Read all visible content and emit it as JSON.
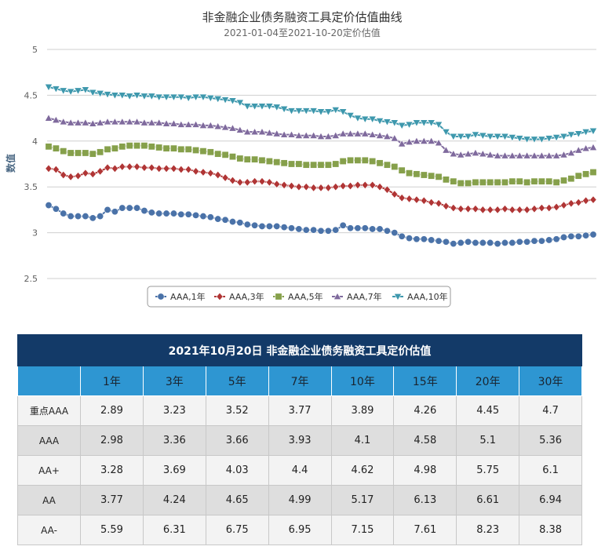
{
  "chart_data": {
    "type": "line",
    "title": "非金融企业债务融资工具定价估值曲线",
    "subtitle": "2021-01-04至2021-10-20定价估值",
    "ylabel": "数值",
    "xlabel": "",
    "ylim": [
      2.5,
      5
    ],
    "yticks": [
      2.5,
      3,
      3.5,
      4,
      4.5,
      5
    ],
    "grid": true,
    "legend_position": "bottom",
    "x_range": [
      "2021-01-04",
      "2021-10-20"
    ],
    "series": [
      {
        "name": "AAA,1年",
        "color": "#4a72a8",
        "marker": "circle",
        "values": [
          3.3,
          3.26,
          3.21,
          3.18,
          3.18,
          3.18,
          3.16,
          3.18,
          3.25,
          3.23,
          3.27,
          3.27,
          3.27,
          3.24,
          3.22,
          3.21,
          3.21,
          3.21,
          3.2,
          3.2,
          3.19,
          3.18,
          3.17,
          3.15,
          3.14,
          3.12,
          3.11,
          3.09,
          3.08,
          3.07,
          3.07,
          3.07,
          3.06,
          3.05,
          3.04,
          3.03,
          3.03,
          3.02,
          3.02,
          3.03,
          3.08,
          3.05,
          3.05,
          3.05,
          3.04,
          3.04,
          3.02,
          3.0,
          2.96,
          2.94,
          2.93,
          2.93,
          2.92,
          2.91,
          2.9,
          2.88,
          2.89,
          2.9,
          2.89,
          2.89,
          2.89,
          2.88,
          2.89,
          2.89,
          2.9,
          2.9,
          2.91,
          2.91,
          2.92,
          2.93,
          2.95,
          2.96,
          2.96,
          2.97,
          2.98
        ]
      },
      {
        "name": "AAA,3年",
        "color": "#b03535",
        "marker": "diamond",
        "values": [
          3.7,
          3.69,
          3.63,
          3.61,
          3.62,
          3.65,
          3.64,
          3.67,
          3.71,
          3.7,
          3.72,
          3.72,
          3.72,
          3.71,
          3.71,
          3.7,
          3.7,
          3.7,
          3.69,
          3.69,
          3.67,
          3.66,
          3.65,
          3.63,
          3.6,
          3.57,
          3.55,
          3.55,
          3.56,
          3.56,
          3.55,
          3.53,
          3.52,
          3.51,
          3.5,
          3.5,
          3.49,
          3.49,
          3.49,
          3.5,
          3.51,
          3.51,
          3.52,
          3.52,
          3.52,
          3.5,
          3.47,
          3.42,
          3.38,
          3.37,
          3.36,
          3.35,
          3.33,
          3.32,
          3.29,
          3.27,
          3.26,
          3.26,
          3.26,
          3.25,
          3.25,
          3.25,
          3.26,
          3.25,
          3.25,
          3.25,
          3.26,
          3.27,
          3.27,
          3.28,
          3.3,
          3.32,
          3.33,
          3.35,
          3.36
        ]
      },
      {
        "name": "AAA,5年",
        "color": "#86a04b",
        "marker": "square",
        "values": [
          3.94,
          3.92,
          3.89,
          3.87,
          3.87,
          3.87,
          3.86,
          3.88,
          3.91,
          3.92,
          3.94,
          3.95,
          3.95,
          3.95,
          3.94,
          3.93,
          3.92,
          3.92,
          3.91,
          3.91,
          3.9,
          3.89,
          3.88,
          3.86,
          3.85,
          3.83,
          3.81,
          3.8,
          3.8,
          3.79,
          3.78,
          3.77,
          3.76,
          3.75,
          3.75,
          3.74,
          3.74,
          3.74,
          3.74,
          3.75,
          3.78,
          3.79,
          3.79,
          3.79,
          3.78,
          3.76,
          3.74,
          3.72,
          3.68,
          3.65,
          3.64,
          3.63,
          3.62,
          3.61,
          3.58,
          3.56,
          3.54,
          3.54,
          3.55,
          3.55,
          3.55,
          3.55,
          3.55,
          3.56,
          3.56,
          3.55,
          3.56,
          3.56,
          3.56,
          3.55,
          3.57,
          3.59,
          3.62,
          3.64,
          3.66
        ]
      },
      {
        "name": "AAA,7年",
        "color": "#7f6a9d",
        "marker": "triangle-up",
        "values": [
          4.25,
          4.23,
          4.21,
          4.2,
          4.2,
          4.2,
          4.19,
          4.2,
          4.21,
          4.21,
          4.21,
          4.21,
          4.21,
          4.2,
          4.2,
          4.2,
          4.19,
          4.19,
          4.18,
          4.18,
          4.18,
          4.17,
          4.17,
          4.16,
          4.15,
          4.14,
          4.12,
          4.1,
          4.1,
          4.1,
          4.09,
          4.08,
          4.07,
          4.07,
          4.06,
          4.06,
          4.06,
          4.05,
          4.05,
          4.06,
          4.08,
          4.08,
          4.08,
          4.08,
          4.07,
          4.06,
          4.05,
          4.03,
          3.97,
          3.99,
          4.0,
          4.0,
          4.0,
          3.98,
          3.9,
          3.86,
          3.85,
          3.86,
          3.87,
          3.86,
          3.85,
          3.84,
          3.84,
          3.84,
          3.84,
          3.84,
          3.84,
          3.84,
          3.84,
          3.84,
          3.85,
          3.87,
          3.9,
          3.92,
          3.93
        ]
      },
      {
        "name": "AAA,10年",
        "color": "#3e98ad",
        "marker": "triangle-down",
        "values": [
          4.59,
          4.57,
          4.55,
          4.54,
          4.55,
          4.56,
          4.53,
          4.52,
          4.51,
          4.5,
          4.5,
          4.49,
          4.5,
          4.49,
          4.49,
          4.48,
          4.48,
          4.48,
          4.48,
          4.47,
          4.48,
          4.48,
          4.47,
          4.46,
          4.45,
          4.44,
          4.42,
          4.38,
          4.38,
          4.38,
          4.38,
          4.37,
          4.35,
          4.33,
          4.33,
          4.33,
          4.33,
          4.32,
          4.32,
          4.34,
          4.32,
          4.28,
          4.25,
          4.24,
          4.24,
          4.22,
          4.21,
          4.2,
          4.17,
          4.18,
          4.2,
          4.2,
          4.2,
          4.18,
          4.1,
          4.05,
          4.05,
          4.05,
          4.07,
          4.06,
          4.05,
          4.05,
          4.05,
          4.04,
          4.03,
          4.02,
          4.02,
          4.02,
          4.03,
          4.04,
          4.05,
          4.07,
          4.08,
          4.1,
          4.11
        ]
      }
    ]
  },
  "table": {
    "title": "2021年10月20日 非金融企业债务融资工具定价估值",
    "columns": [
      "",
      "1年",
      "3年",
      "5年",
      "7年",
      "10年",
      "15年",
      "20年",
      "30年"
    ],
    "rows": [
      {
        "label": "重点AAA",
        "values": [
          "2.89",
          "3.23",
          "3.52",
          "3.77",
          "3.89",
          "4.26",
          "4.45",
          "4.7"
        ]
      },
      {
        "label": "AAA",
        "values": [
          "2.98",
          "3.36",
          "3.66",
          "3.93",
          "4.1",
          "4.58",
          "5.1",
          "5.36"
        ]
      },
      {
        "label": "AA+",
        "values": [
          "3.28",
          "3.69",
          "4.03",
          "4.4",
          "4.62",
          "4.98",
          "5.75",
          "6.1"
        ]
      },
      {
        "label": "AA",
        "values": [
          "3.77",
          "4.24",
          "4.65",
          "4.99",
          "5.17",
          "6.13",
          "6.61",
          "6.94"
        ]
      },
      {
        "label": "AA-",
        "values": [
          "5.59",
          "6.31",
          "6.75",
          "6.95",
          "7.15",
          "7.61",
          "8.23",
          "8.38"
        ]
      }
    ]
  }
}
